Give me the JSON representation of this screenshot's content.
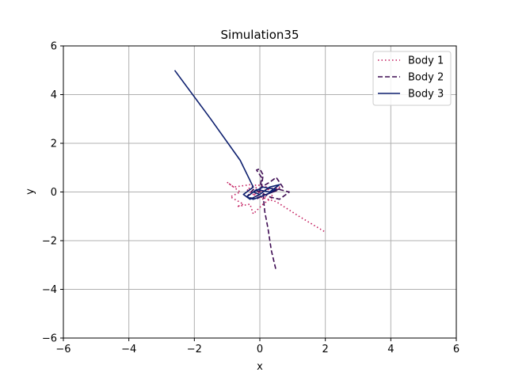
{
  "chart_data": {
    "type": "line",
    "title": "Simulation35",
    "xlabel": "x",
    "ylabel": "y",
    "xlim": [
      -6,
      6
    ],
    "ylim": [
      -6,
      6
    ],
    "xticks": [
      -6,
      -4,
      -2,
      0,
      2,
      4,
      6
    ],
    "yticks": [
      -6,
      -4,
      -2,
      0,
      2,
      4,
      6
    ],
    "xtick_labels": [
      "−6",
      "−4",
      "−2",
      "0",
      "2",
      "4",
      "6"
    ],
    "ytick_labels": [
      "−6",
      "−4",
      "−2",
      "0",
      "2",
      "4",
      "6"
    ],
    "grid": true,
    "legend_position": "top-right",
    "series": [
      {
        "name": "Body 1",
        "color": "#c2185b",
        "style": "dotted",
        "x": [
          0.0,
          -0.3,
          -0.8,
          -1.0,
          -0.6,
          -0.9,
          -0.5,
          -0.7,
          -0.3,
          -0.2,
          0.1,
          0.4,
          0.2,
          -0.1,
          -0.4,
          -0.2,
          0.1,
          0.3,
          0.6,
          0.2,
          -0.2,
          0.0,
          0.5,
          1.2,
          2.0
        ],
        "y": [
          0.1,
          0.3,
          0.2,
          0.4,
          0.0,
          -0.2,
          -0.5,
          -0.6,
          -0.5,
          -0.9,
          -0.5,
          -0.2,
          0.2,
          0.3,
          0.1,
          -0.1,
          -0.3,
          0.0,
          0.2,
          0.1,
          -0.1,
          -0.2,
          -0.4,
          -1.0,
          -1.65
        ]
      },
      {
        "name": "Body 2",
        "color": "#3d0b52",
        "style": "dashed",
        "x": [
          0.0,
          0.05,
          -0.1,
          0.0,
          0.1,
          0.05,
          0.3,
          0.5,
          0.7,
          0.4,
          0.2,
          0.6,
          0.9,
          0.6,
          0.3,
          0.0,
          -0.2,
          -0.4,
          -0.1,
          0.1,
          0.15,
          0.25,
          0.35,
          0.5
        ],
        "y": [
          0.0,
          0.6,
          0.9,
          0.95,
          0.7,
          0.2,
          0.4,
          0.6,
          0.2,
          0.0,
          -0.1,
          0.1,
          0.0,
          -0.3,
          -0.2,
          0.0,
          0.1,
          -0.2,
          -0.3,
          -0.1,
          -0.8,
          -1.5,
          -2.4,
          -3.25
        ]
      },
      {
        "name": "Body 3",
        "color": "#0d1f6e",
        "style": "solid",
        "x": [
          -2.6,
          -1.5,
          -0.6,
          -0.2,
          -0.5,
          -0.3,
          0.0,
          0.3,
          0.6,
          0.3,
          -0.1,
          -0.4,
          -0.2,
          0.2,
          0.5,
          0.1,
          -0.2,
          0.0
        ],
        "y": [
          5.0,
          3.0,
          1.3,
          0.2,
          -0.1,
          -0.3,
          -0.1,
          0.2,
          0.3,
          0.0,
          0.1,
          -0.2,
          -0.3,
          -0.1,
          0.1,
          0.2,
          0.0,
          -0.1
        ]
      }
    ]
  }
}
